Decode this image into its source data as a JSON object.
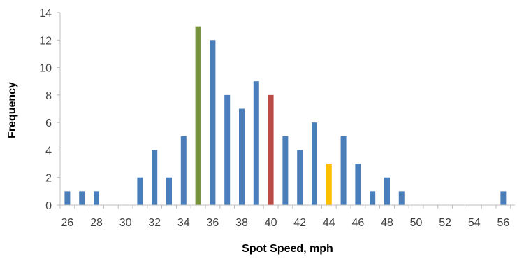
{
  "chart_data": {
    "type": "bar",
    "title": "",
    "xlabel": "Spot Speed, mph",
    "ylabel": "Frequency",
    "ylim": [
      0,
      14
    ],
    "yticks": [
      0,
      2,
      4,
      6,
      8,
      10,
      12,
      14
    ],
    "xlim": [
      26,
      56
    ],
    "xticks": [
      26,
      28,
      30,
      32,
      34,
      36,
      38,
      40,
      42,
      44,
      46,
      48,
      50,
      52,
      54,
      56
    ],
    "x": [
      26,
      27,
      28,
      31,
      32,
      33,
      34,
      35,
      36,
      37,
      38,
      39,
      40,
      41,
      42,
      43,
      44,
      45,
      46,
      47,
      48,
      49,
      56
    ],
    "values": [
      1,
      1,
      1,
      2,
      4,
      2,
      5,
      13,
      12,
      8,
      7,
      9,
      8,
      5,
      4,
      6,
      3,
      5,
      3,
      1,
      2,
      1,
      1
    ],
    "grid": false,
    "legend": "none",
    "colors": {
      "default": "#4A7EBB",
      "highlight_35": "#77933C",
      "highlight_40": "#BE4B48",
      "highlight_44": "#FFC000",
      "axis": "#BFBFBF",
      "text": "#404040"
    },
    "highlights": {
      "35": "highlight_35",
      "40": "highlight_40",
      "44": "highlight_44"
    }
  }
}
